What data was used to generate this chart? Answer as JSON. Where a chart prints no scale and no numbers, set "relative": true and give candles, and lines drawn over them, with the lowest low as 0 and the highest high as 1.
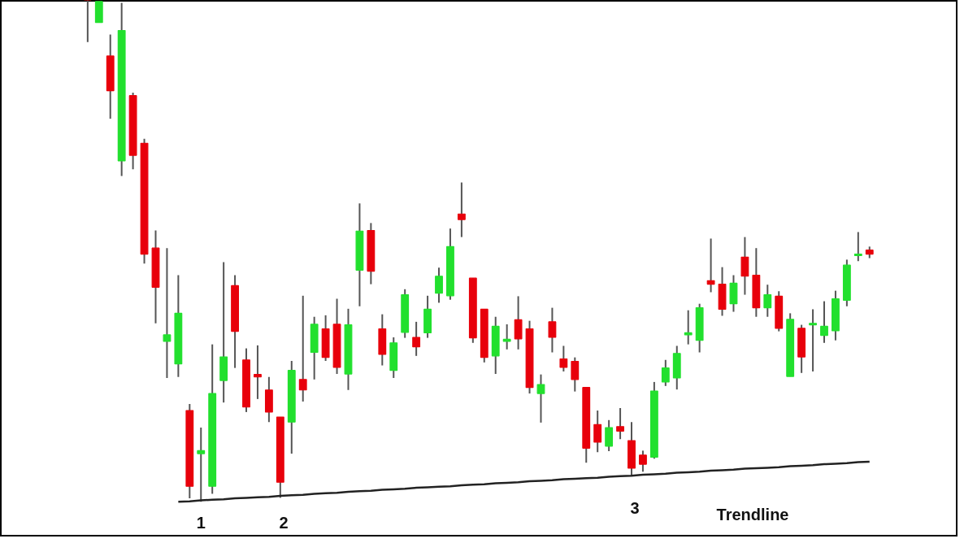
{
  "chart_data": {
    "type": "candlestick",
    "relative": true,
    "categories": [
      null,
      null,
      null,
      null,
      null,
      null,
      null,
      null,
      null,
      null,
      null,
      null,
      null,
      null,
      null,
      null,
      null,
      null,
      null,
      null,
      null,
      null,
      null,
      null,
      null,
      null,
      null,
      null,
      null,
      null,
      null,
      null,
      null,
      null,
      null,
      null,
      null,
      null,
      null,
      null,
      null,
      null,
      null,
      null,
      null,
      null,
      null,
      null,
      null,
      null,
      null,
      null,
      null,
      null,
      null,
      null,
      null,
      null,
      null,
      null,
      null,
      null,
      null,
      null,
      null,
      null,
      null,
      null,
      null,
      null
    ],
    "ohlc": [
      [
        1,
        1,
        0.917,
        1
      ],
      [
        0.956,
        0.998,
        0.956,
        0.998
      ],
      [
        0.889,
        0.932,
        0.764,
        0.82
      ],
      [
        0.68,
        0.995,
        0.65,
        0.94
      ],
      [
        0.81,
        0.816,
        0.663,
        0.691
      ],
      [
        0.715,
        0.724,
        0.475,
        0.494
      ],
      [
        0.506,
        0.541,
        0.356,
        0.428
      ],
      [
        0.32,
        0.506,
        0.247,
        0.333
      ],
      [
        0.275,
        0.452,
        0.249,
        0.376
      ],
      [
        0.182,
        0.195,
        0.007,
        0.031
      ],
      [
        0.096,
        0.148,
        0,
        0.102
      ],
      [
        0.031,
        0.314,
        0.016,
        0.216
      ],
      [
        0.242,
        0.478,
        0.198,
        0.289
      ],
      [
        0.431,
        0.452,
        0.267,
        0.34
      ],
      [
        0.283,
        0.306,
        0.179,
        0.189
      ],
      [
        0.254,
        0.312,
        0.205,
        0.249
      ],
      [
        0.223,
        0.249,
        0.159,
        0.179
      ],
      [
        0.169,
        0.169,
        0.008,
        0.039
      ],
      [
        0.159,
        0.281,
        0.096,
        0.262
      ],
      [
        0.244,
        0.411,
        0.2,
        0.223
      ],
      [
        0.298,
        0.369,
        0.244,
        0.354
      ],
      [
        0.345,
        0.372,
        0.281,
        0.288
      ],
      [
        0.354,
        0.405,
        0.255,
        0.268
      ],
      [
        0.255,
        0.385,
        0.223,
        0.353
      ],
      [
        0.462,
        0.595,
        0.39,
        0.54
      ],
      [
        0.541,
        0.556,
        0.434,
        0.46
      ],
      [
        0.345,
        0.374,
        0.272,
        0.294
      ],
      [
        0.262,
        0.328,
        0.247,
        0.317
      ],
      [
        0.338,
        0.424,
        0.327,
        0.413
      ],
      [
        0.328,
        0.359,
        0.291,
        0.309
      ],
      [
        0.337,
        0.411,
        0.327,
        0.384
      ],
      [
        0.416,
        0.467,
        0.397,
        0.45
      ],
      [
        0.411,
        0.545,
        0.403,
        0.509
      ],
      [
        0.574,
        0.637,
        0.528,
        0.563
      ],
      [
        0.446,
        0.446,
        0.317,
        0.327
      ],
      [
        0.384,
        0.384,
        0.278,
        0.288
      ],
      [
        0.291,
        0.369,
        0.255,
        0.35
      ],
      [
        0.32,
        0.354,
        0.304,
        0.324
      ],
      [
        0.363,
        0.41,
        0.304,
        0.325
      ],
      [
        0.345,
        0.361,
        0.216,
        0.228
      ],
      [
        0.216,
        0.254,
        0.158,
        0.234
      ],
      [
        0.359,
        0.387,
        0.298,
        0.328
      ],
      [
        0.285,
        0.311,
        0.26,
        0.268
      ],
      [
        0.28,
        0.288,
        0.22,
        0.244
      ],
      [
        0.228,
        0.228,
        0.078,
        0.107
      ],
      [
        0.154,
        0.182,
        0.099,
        0.119
      ],
      [
        0.111,
        0.163,
        0.101,
        0.148
      ],
      [
        0.15,
        0.187,
        0.125,
        0.141
      ],
      [
        0.122,
        0.159,
        0.052,
        0.067
      ],
      [
        0.093,
        0.102,
        0.06,
        0.075
      ],
      [
        0.089,
        0.239,
        0.086,
        0.221
      ],
      [
        0.239,
        0.283,
        0.231,
        0.267
      ],
      [
        0.247,
        0.311,
        0.224,
        0.296
      ],
      [
        0.333,
        0.382,
        0.314,
        0.337
      ],
      [
        0.322,
        0.395,
        0.298,
        0.387
      ],
      [
        0.441,
        0.525,
        0.418,
        0.434
      ],
      [
        0.434,
        0.468,
        0.371,
        0.384
      ],
      [
        0.395,
        0.452,
        0.379,
        0.436
      ],
      [
        0.488,
        0.528,
        0.413,
        0.45
      ],
      [
        0.452,
        0.506,
        0.369,
        0.387
      ],
      [
        0.387,
        0.433,
        0.369,
        0.413
      ],
      [
        0.41,
        0.42,
        0.34,
        0.346
      ],
      [
        0.25,
        0.376,
        0.25,
        0.364
      ],
      [
        0.346,
        0.353,
        0.257,
        0.289
      ],
      [
        0.353,
        0.384,
        0.26,
        0.356
      ],
      [
        0.332,
        0.4,
        0.317,
        0.35
      ],
      [
        0.341,
        0.421,
        0.322,
        0.405
      ],
      [
        0.402,
        0.483,
        0.39,
        0.472
      ],
      [
        0.491,
        0.538,
        0.48,
        0.494
      ],
      [
        0.502,
        0.509,
        0.486,
        0.494
      ]
    ],
    "colors": [
      "#e8000b",
      "#22e02e",
      "#e8000b",
      "#22e02e",
      "#e8000b",
      "#e8000b",
      "#e8000b",
      "#22e02e",
      "#22e02e",
      "#e8000b",
      "#22e02e",
      "#22e02e",
      "#22e02e",
      "#e8000b",
      "#e8000b",
      "#e8000b",
      "#e8000b",
      "#e8000b",
      "#22e02e",
      "#e8000b",
      "#22e02e",
      "#e8000b",
      "#e8000b",
      "#22e02e",
      "#22e02e",
      "#e8000b",
      "#e8000b",
      "#22e02e",
      "#22e02e",
      "#e8000b",
      "#22e02e",
      "#22e02e",
      "#22e02e",
      "#e8000b",
      "#e8000b",
      "#e8000b",
      "#22e02e",
      "#22e02e",
      "#e8000b",
      "#e8000b",
      "#22e02e",
      "#e8000b",
      "#e8000b",
      "#e8000b",
      "#e8000b",
      "#e8000b",
      "#22e02e",
      "#e8000b",
      "#e8000b",
      "#e8000b",
      "#22e02e",
      "#22e02e",
      "#22e02e",
      "#22e02e",
      "#22e02e",
      "#e8000b",
      "#e8000b",
      "#22e02e",
      "#e8000b",
      "#e8000b",
      "#22e02e",
      "#e8000b",
      "#22e02e",
      "#e8000b",
      "#22e02e",
      "#22e02e",
      "#22e02e",
      "#22e02e",
      "#22e02e",
      "#e8000b"
    ],
    "series": [
      {
        "type": "line",
        "color": "#222222",
        "values": [
          null,
          null,
          null,
          null,
          null,
          null,
          null,
          null,
          0.0,
          0.001,
          0.003,
          0.004,
          0.005,
          0.007,
          0.008,
          0.009,
          0.01,
          0.012,
          0.013,
          0.014,
          0.016,
          0.017,
          0.018,
          0.02,
          0.021,
          0.022,
          0.024,
          0.025,
          0.026,
          0.028,
          0.029,
          0.03,
          0.031,
          0.033,
          0.034,
          0.035,
          0.037,
          0.038,
          0.039,
          0.041,
          0.042,
          0.043,
          0.045,
          0.046,
          0.047,
          0.048,
          0.05,
          0.051,
          0.052,
          0.054,
          0.055,
          0.056,
          0.058,
          0.059,
          0.06,
          0.062,
          0.063,
          0.064,
          0.066,
          0.067,
          0.068,
          0.069,
          0.071,
          0.072,
          0.073,
          0.075,
          0.076,
          0.077,
          0.079,
          0.08
        ]
      }
    ],
    "annotations": [
      "1",
      "2",
      "3",
      "Trendline"
    ]
  }
}
